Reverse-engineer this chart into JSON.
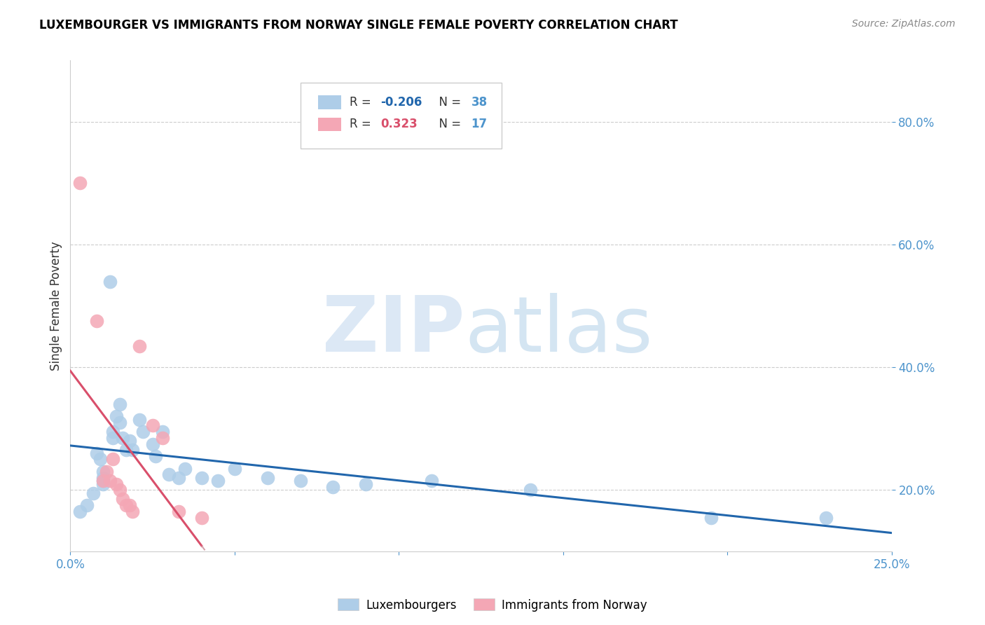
{
  "title": "LUXEMBOURGER VS IMMIGRANTS FROM NORWAY SINGLE FEMALE POVERTY CORRELATION CHART",
  "source": "Source: ZipAtlas.com",
  "ylabel": "Single Female Poverty",
  "xlim": [
    0.0,
    0.25
  ],
  "ylim": [
    0.1,
    0.9
  ],
  "blue_R": -0.206,
  "blue_N": 38,
  "pink_R": 0.323,
  "pink_N": 17,
  "blue_color": "#aecde8",
  "pink_color": "#f4a7b5",
  "trendline_blue_color": "#2166ac",
  "trendline_pink_color": "#d94f6b",
  "trendline_pink_dashed_color": "#d4a0aa",
  "axis_color": "#4d94cc",
  "grid_color": "#cccccc",
  "blue_scatter": [
    [
      0.003,
      0.165
    ],
    [
      0.005,
      0.175
    ],
    [
      0.007,
      0.195
    ],
    [
      0.008,
      0.26
    ],
    [
      0.009,
      0.25
    ],
    [
      0.01,
      0.23
    ],
    [
      0.01,
      0.21
    ],
    [
      0.01,
      0.22
    ],
    [
      0.01,
      0.215
    ],
    [
      0.012,
      0.54
    ],
    [
      0.013,
      0.295
    ],
    [
      0.013,
      0.285
    ],
    [
      0.014,
      0.32
    ],
    [
      0.015,
      0.34
    ],
    [
      0.015,
      0.31
    ],
    [
      0.016,
      0.285
    ],
    [
      0.017,
      0.265
    ],
    [
      0.018,
      0.28
    ],
    [
      0.019,
      0.265
    ],
    [
      0.021,
      0.315
    ],
    [
      0.022,
      0.295
    ],
    [
      0.025,
      0.275
    ],
    [
      0.026,
      0.255
    ],
    [
      0.028,
      0.295
    ],
    [
      0.03,
      0.225
    ],
    [
      0.033,
      0.22
    ],
    [
      0.035,
      0.235
    ],
    [
      0.04,
      0.22
    ],
    [
      0.045,
      0.215
    ],
    [
      0.05,
      0.235
    ],
    [
      0.06,
      0.22
    ],
    [
      0.07,
      0.215
    ],
    [
      0.08,
      0.205
    ],
    [
      0.09,
      0.21
    ],
    [
      0.11,
      0.215
    ],
    [
      0.14,
      0.2
    ],
    [
      0.195,
      0.155
    ],
    [
      0.23,
      0.155
    ]
  ],
  "pink_scatter": [
    [
      0.003,
      0.7
    ],
    [
      0.008,
      0.475
    ],
    [
      0.01,
      0.215
    ],
    [
      0.011,
      0.23
    ],
    [
      0.012,
      0.215
    ],
    [
      0.013,
      0.25
    ],
    [
      0.014,
      0.21
    ],
    [
      0.015,
      0.2
    ],
    [
      0.016,
      0.185
    ],
    [
      0.017,
      0.175
    ],
    [
      0.018,
      0.175
    ],
    [
      0.019,
      0.165
    ],
    [
      0.021,
      0.435
    ],
    [
      0.025,
      0.305
    ],
    [
      0.028,
      0.285
    ],
    [
      0.033,
      0.165
    ],
    [
      0.04,
      0.155
    ]
  ]
}
